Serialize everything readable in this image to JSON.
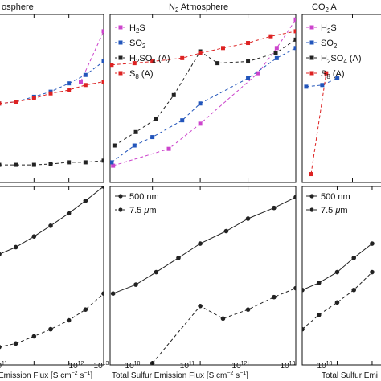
{
  "figure": {
    "titles": {
      "left": "osphere",
      "mid_html": "N<tspan font-size='8' dy='3'>2</tspan><tspan dy='-3'> Atmosphere</tspan>",
      "right_html": "CO<tspan font-size='8' dy='3'>2</tspan><tspan dy='-3'> A</tspan>"
    },
    "xlabels": {
      "left_html": "Emission Flux [S cm<tspan font-size='7' dy='-4'>−2</tspan><tspan dy='4'> s</tspan><tspan font-size='7' dy='-4'>−1</tspan><tspan dy='4'>]</tspan>",
      "mid_html": "Total Sulfur Emission Flux [S cm<tspan font-size='7' dy='-4'>−2</tspan><tspan dy='4'> s</tspan><tspan font-size='7' dy='-4'>−1</tspan><tspan dy='4'>]</tspan>",
      "right_html": "Total Sulfur Emi"
    }
  },
  "chart_data": [
    {
      "type": "line",
      "panel": "top-left",
      "title": "osphere",
      "xscale": "log",
      "series": [
        {
          "name": "H2S",
          "color": "#cc44cc",
          "marker": "square",
          "line": "dashed",
          "x": [
            2200000000000.0,
            10000000000000.0
          ],
          "y": [
            0.6,
            0.9
          ]
        },
        {
          "name": "SO2",
          "color": "#2255bb",
          "marker": "square",
          "line": "dashed",
          "x": [
            10000000000.0,
            30000000000.0,
            100000000000.0,
            300000000000.0,
            1000000000000.0,
            3000000000000.0,
            10000000000000.0
          ],
          "y": [
            0.47,
            0.48,
            0.51,
            0.54,
            0.59,
            0.64,
            0.72
          ]
        },
        {
          "name": "H2SO4 (A)",
          "color": "#222222",
          "marker": "square",
          "line": "dashed",
          "x": [
            10000000000.0,
            30000000000.0,
            100000000000.0,
            300000000000.0,
            1000000000000.0,
            3000000000000.0,
            10000000000000.0
          ],
          "y": [
            0.105,
            0.105,
            0.105,
            0.11,
            0.12,
            0.12,
            0.13
          ]
        },
        {
          "name": "S8 (A)",
          "color": "#dd2222",
          "marker": "square",
          "line": "dashed",
          "x": [
            10000000000.0,
            30000000000.0,
            100000000000.0,
            300000000000.0,
            1000000000000.0,
            3000000000000.0,
            10000000000000.0
          ],
          "y": [
            0.47,
            0.48,
            0.5,
            0.53,
            0.55,
            0.58,
            0.6
          ]
        }
      ]
    },
    {
      "type": "line",
      "panel": "top-middle",
      "title": "N2 Atmosphere",
      "xscale": "log",
      "legend": [
        "H2S",
        "SO2",
        "H2SO4 (A)",
        "S8 (A)"
      ],
      "series": [
        {
          "name": "H2S",
          "color": "#cc44cc",
          "marker": "square",
          "line": "dashed",
          "x": [
            1500000000.0,
            22000000000.0,
            100000000000.0,
            1600000000000.0,
            4000000000000.0,
            10000000000000.0
          ],
          "y": [
            0.1,
            0.2,
            0.35,
            0.65,
            0.8,
            0.97
          ]
        },
        {
          "name": "SO2",
          "color": "#2255bb",
          "marker": "square",
          "line": "dashed",
          "x": [
            1400000000.0,
            4200000000.0,
            10000000000.0,
            42000000000.0,
            100000000000.0,
            1000000000000.0,
            4000000000000.0,
            10000000000000.0
          ],
          "y": [
            0.12,
            0.22,
            0.27,
            0.37,
            0.47,
            0.62,
            0.74,
            0.8
          ]
        },
        {
          "name": "H2SO4 (A)",
          "color": "#222222",
          "marker": "square",
          "line": "dashed",
          "x": [
            1600000000.0,
            4500000000.0,
            12000000000.0,
            28000000000.0,
            100000000000.0,
            230000000000.0,
            1000000000000.0,
            3800000000000.0,
            10000000000000.0
          ],
          "y": [
            0.22,
            0.3,
            0.38,
            0.52,
            0.78,
            0.71,
            0.72,
            0.77,
            0.85
          ]
        },
        {
          "name": "S8 (A)",
          "color": "#dd2222",
          "marker": "square",
          "line": "dashed",
          "x": [
            1400000000.0,
            4200000000.0,
            10000000000.0,
            42000000000.0,
            100000000000.0,
            300000000000.0,
            1000000000000.0,
            3000000000000.0,
            10000000000000.0
          ],
          "y": [
            0.7,
            0.71,
            0.72,
            0.74,
            0.77,
            0.8,
            0.83,
            0.87,
            0.9
          ]
        }
      ]
    },
    {
      "type": "line",
      "panel": "top-right",
      "title": "CO2 A",
      "xscale": "log",
      "series": [
        {
          "name": "SO2",
          "color": "#2255bb",
          "marker": "square",
          "line": "dashed",
          "x": [
            1200000000.0,
            2500000000.0,
            5000000000.0
          ],
          "y": [
            0.57,
            0.58,
            0.62
          ]
        },
        {
          "name": "S8 (A)",
          "color": "#dd2222",
          "marker": "square",
          "line": "dashed",
          "x": [
            1500000000.0,
            3000000000.0
          ],
          "y": [
            0.05,
            0.65
          ]
        }
      ]
    },
    {
      "type": "line",
      "panel": "bottom-left",
      "xscale": "log",
      "series": [
        {
          "name": "500 nm",
          "color": "#222222",
          "marker": "circle",
          "line": "solid",
          "x": [
            10000000000.0,
            30000000000.0,
            100000000000.0,
            300000000000.0,
            1000000000000.0,
            3000000000000.0,
            10000000000000.0
          ],
          "y": [
            0.62,
            0.66,
            0.72,
            0.78,
            0.85,
            0.92,
            1.0
          ]
        },
        {
          "name": "7.5 μm",
          "color": "#222222",
          "marker": "circle",
          "line": "dashed",
          "x": [
            10000000000.0,
            30000000000.0,
            100000000000.0,
            300000000000.0,
            1000000000000.0,
            3000000000000.0,
            10000000000000.0
          ],
          "y": [
            0.1,
            0.12,
            0.16,
            0.2,
            0.25,
            0.31,
            0.4
          ]
        }
      ]
    },
    {
      "type": "line",
      "panel": "bottom-middle",
      "xscale": "log",
      "legend": [
        "500 nm",
        "7.5 μm"
      ],
      "series": [
        {
          "name": "500 nm",
          "color": "#222222",
          "marker": "circle",
          "line": "solid",
          "x": [
            1500000000.0,
            4500000000.0,
            12000000000.0,
            35000000000.0,
            100000000000.0,
            350000000000.0,
            1000000000000.0,
            3500000000000.0,
            10000000000000.0
          ],
          "y": [
            0.4,
            0.45,
            0.52,
            0.6,
            0.68,
            0.75,
            0.82,
            0.88,
            0.94
          ]
        },
        {
          "name": "7.5 μm",
          "color": "#222222",
          "marker": "circle",
          "line": "dashed",
          "x": [
            10000000000.0,
            100000000000.0,
            300000000000.0,
            1000000000000.0,
            3500000000000.0,
            10000000000000.0
          ],
          "y": [
            0.01,
            0.33,
            0.26,
            0.31,
            0.38,
            0.43
          ]
        }
      ]
    },
    {
      "type": "line",
      "panel": "bottom-right",
      "xscale": "log",
      "legend": [
        "500 nm",
        "7.5 μm"
      ],
      "series": [
        {
          "name": "500 nm",
          "color": "#222222",
          "marker": "circle",
          "line": "solid",
          "x": [
            1000000000.0,
            3000000000.0,
            10000000000.0,
            30000000000.0,
            100000000000.0
          ],
          "y": [
            0.42,
            0.46,
            0.52,
            0.6,
            0.68
          ]
        },
        {
          "name": "7.5 μm",
          "color": "#222222",
          "marker": "circle",
          "line": "dashed",
          "x": [
            1000000000.0,
            3000000000.0,
            10000000000.0,
            30000000000.0,
            100000000000.0
          ],
          "y": [
            0.2,
            0.28,
            0.35,
            0.42,
            0.52
          ]
        }
      ]
    }
  ]
}
